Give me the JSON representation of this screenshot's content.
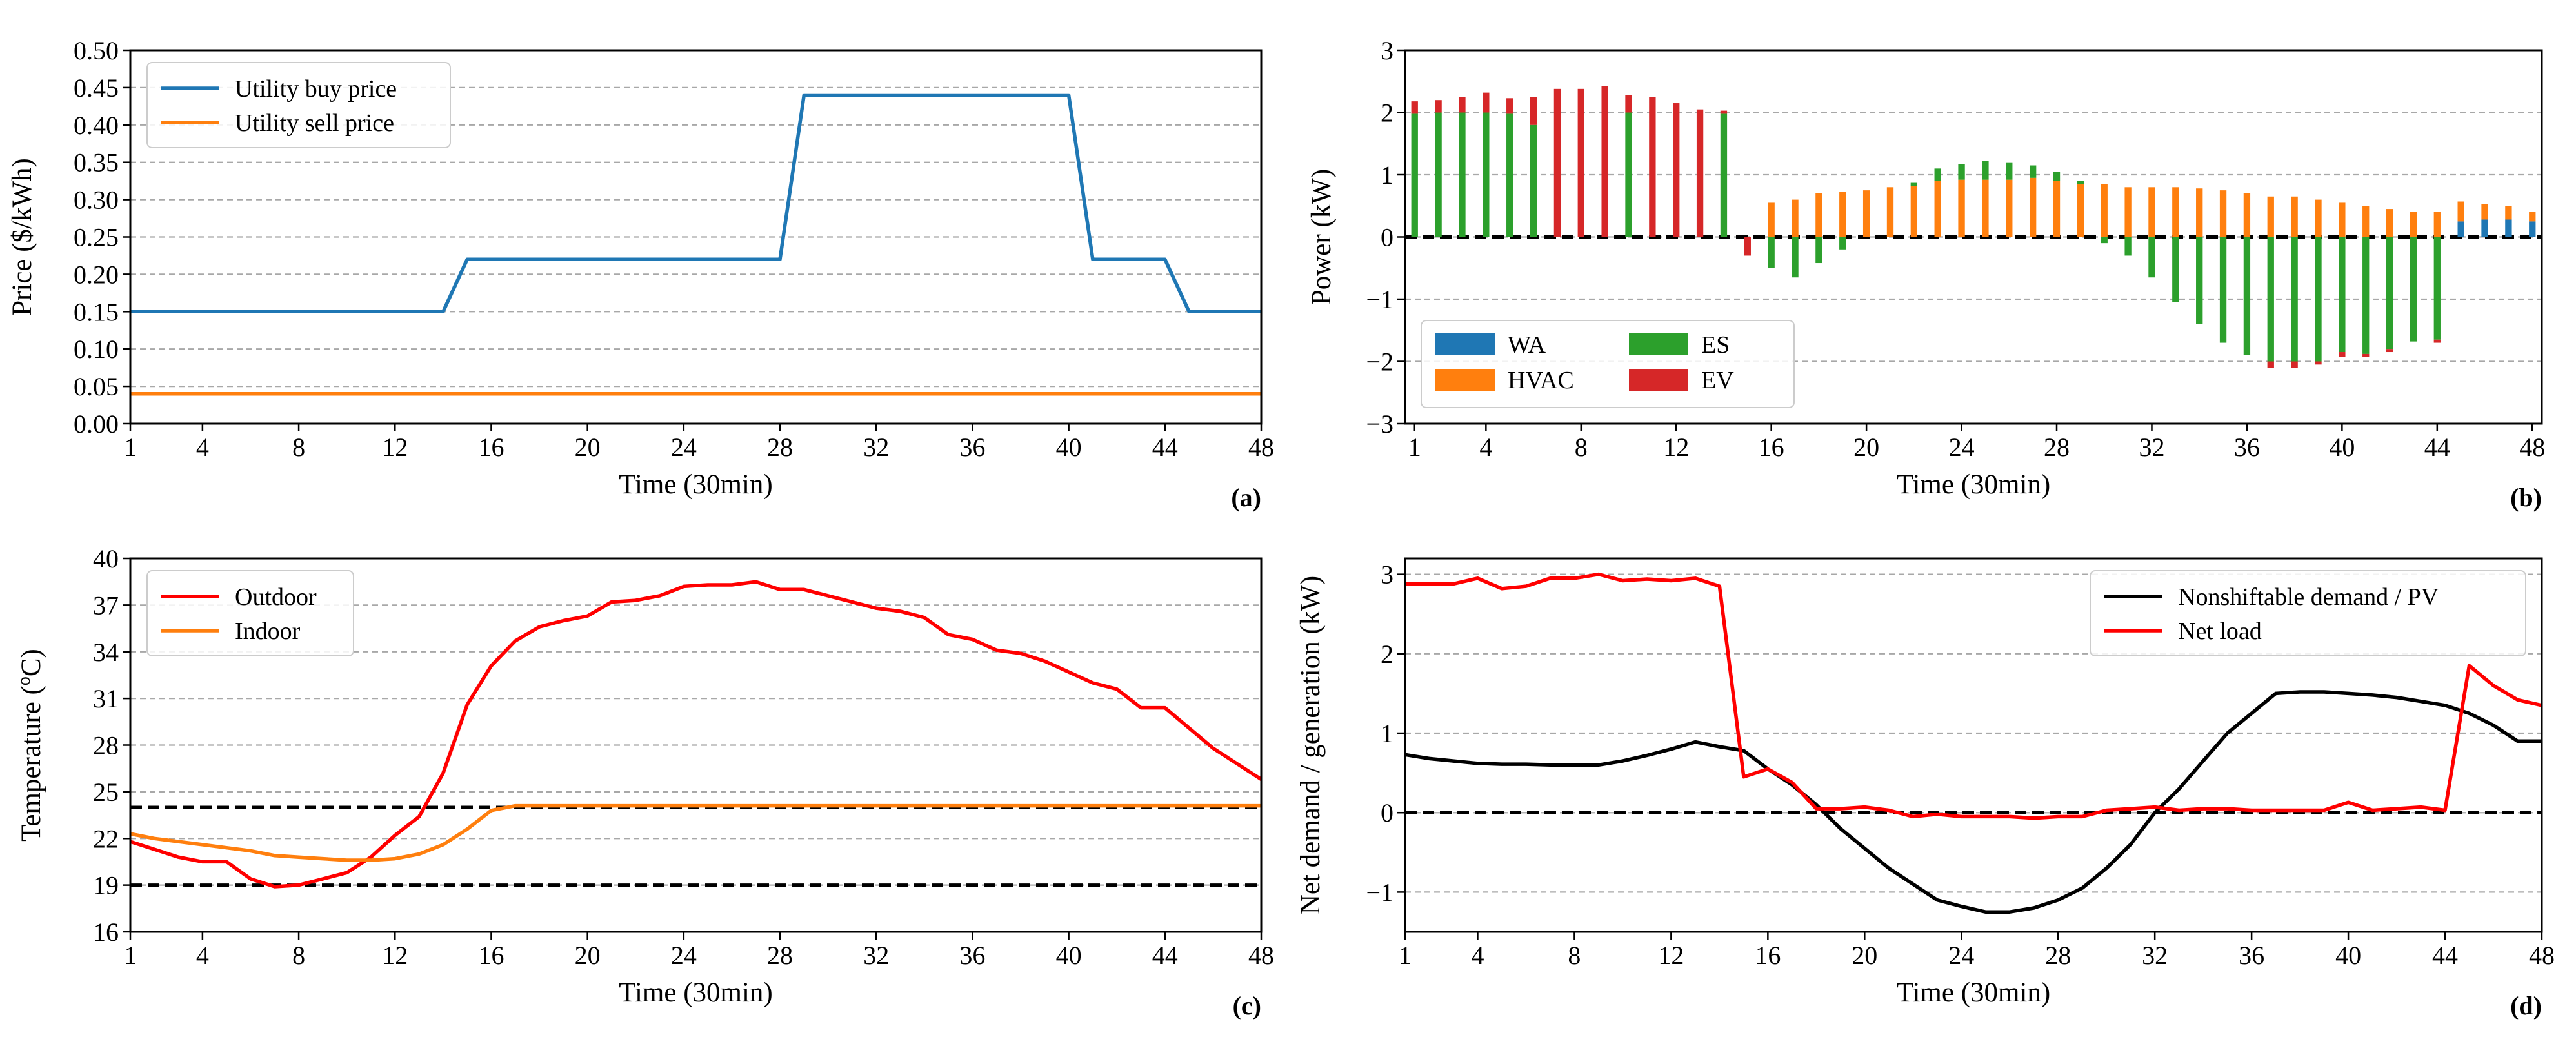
{
  "colors": {
    "blue": "#1f77b4",
    "orange": "#ff7f0e",
    "green": "#2ca02c",
    "red": "#d62728",
    "red_line": "#ff0000",
    "black": "#000000",
    "grid": "#a8a8a8"
  },
  "chart_data": [
    {
      "type": "line",
      "panel_label": "(a)",
      "xlabel": "Time (30min)",
      "ylabel": "Price ($/kWh)",
      "xlim": [
        1,
        48
      ],
      "ylim": [
        0,
        0.5
      ],
      "xticks": [
        1,
        4,
        8,
        12,
        16,
        20,
        24,
        28,
        32,
        36,
        40,
        44,
        48
      ],
      "yticks": [
        0,
        0.05,
        0.1,
        0.15,
        0.2,
        0.25,
        0.3,
        0.35,
        0.4,
        0.45,
        0.5
      ],
      "ytick_labels": [
        "0.00",
        "0.05",
        "0.10",
        "0.15",
        "0.20",
        "0.25",
        "0.30",
        "0.35",
        "0.40",
        "0.45",
        "0.50"
      ],
      "grid": "horizontal dashed",
      "legend_position": "top-left",
      "series": [
        {
          "name": "Utility buy price",
          "color": "#1f77b4",
          "x": [
            1,
            14,
            15,
            28,
            29,
            40,
            41,
            44,
            45,
            48
          ],
          "values": [
            0.15,
            0.15,
            0.22,
            0.22,
            0.44,
            0.44,
            0.22,
            0.22,
            0.15,
            0.15
          ]
        },
        {
          "name": "Utility sell price",
          "color": "#ff7f0e",
          "x": [
            1,
            48
          ],
          "values": [
            0.04,
            0.04
          ]
        }
      ]
    },
    {
      "type": "bar",
      "stacked": true,
      "panel_label": "(b)",
      "xlabel": "Time (30min)",
      "ylabel": "Power (kW)",
      "xlim": [
        0.6,
        48.4
      ],
      "ylim": [
        -3,
        3
      ],
      "xticks": [
        1,
        4,
        8,
        12,
        16,
        20,
        24,
        28,
        32,
        36,
        40,
        44,
        48
      ],
      "yticks": [
        -3,
        -2,
        -1,
        0,
        1,
        2,
        3
      ],
      "ytick_labels": [
        "−3",
        "−2",
        "−1",
        "0",
        "1",
        "2",
        "3"
      ],
      "grid": "horizontal dashed",
      "zero_line": "black dashed",
      "legend_position": "bottom-left",
      "legend_columns": 2,
      "categories": [
        1,
        2,
        3,
        4,
        5,
        6,
        7,
        8,
        9,
        10,
        11,
        12,
        13,
        14,
        15,
        16,
        17,
        18,
        19,
        20,
        21,
        22,
        23,
        24,
        25,
        26,
        27,
        28,
        29,
        30,
        31,
        32,
        33,
        34,
        35,
        36,
        37,
        38,
        39,
        40,
        41,
        42,
        43,
        44,
        45,
        46,
        47,
        48
      ],
      "series": [
        {
          "name": "WA",
          "color": "#1f77b4",
          "values": [
            0,
            0,
            0,
            0,
            0,
            0,
            0,
            0,
            0,
            0,
            0,
            0,
            0,
            0,
            0,
            0,
            0,
            0,
            0,
            0,
            0,
            0,
            0,
            0,
            0,
            0,
            0,
            0,
            0,
            0,
            0,
            0,
            0,
            0,
            0,
            0,
            0,
            0,
            0,
            0,
            0,
            0,
            0,
            0,
            0.25,
            0.28,
            0.28,
            0.25
          ]
        },
        {
          "name": "HVAC",
          "color": "#ff7f0e",
          "values": [
            0,
            0,
            0,
            0,
            0,
            0,
            0,
            0,
            0,
            0,
            0,
            0,
            0,
            0,
            0,
            0.55,
            0.6,
            0.7,
            0.73,
            0.75,
            0.8,
            0.82,
            0.9,
            0.92,
            0.92,
            0.92,
            0.95,
            0.9,
            0.85,
            0.85,
            0.8,
            0.8,
            0.8,
            0.78,
            0.75,
            0.7,
            0.65,
            0.65,
            0.6,
            0.55,
            0.5,
            0.45,
            0.4,
            0.4,
            0.32,
            0.25,
            0.22,
            0.15
          ]
        },
        {
          "name": "ES",
          "color": "#2ca02c",
          "values": [
            1.98,
            2.0,
            2.0,
            2.0,
            1.98,
            1.8,
            0,
            0,
            0,
            2.0,
            0,
            0,
            0,
            1.98,
            0,
            -0.5,
            -0.65,
            -0.42,
            -0.2,
            0,
            0,
            0.05,
            0.2,
            0.25,
            0.3,
            0.28,
            0.2,
            0.15,
            0.05,
            -0.1,
            -0.3,
            -0.65,
            -1.05,
            -1.4,
            -1.7,
            -1.9,
            -2.0,
            -2.0,
            -2.0,
            -1.85,
            -1.88,
            -1.8,
            -1.68,
            -1.65,
            0,
            0,
            0,
            0
          ]
        },
        {
          "name": "EV",
          "color": "#d62728",
          "values": [
            0.2,
            0.2,
            0.25,
            0.32,
            0.25,
            0.45,
            2.38,
            2.38,
            2.42,
            0.28,
            2.25,
            2.15,
            2.05,
            0.05,
            -0.3,
            0,
            0,
            0,
            0,
            0,
            0,
            0,
            0,
            0,
            0,
            0,
            0,
            0,
            0,
            0,
            0,
            0,
            0,
            0,
            0,
            0,
            -0.1,
            -0.1,
            -0.05,
            -0.08,
            -0.05,
            -0.05,
            0,
            -0.05,
            0,
            0,
            0,
            0
          ]
        }
      ]
    },
    {
      "type": "line",
      "panel_label": "(c)",
      "xlabel": "Time (30min)",
      "ylabel_parts": [
        "Temperature (",
        "o",
        "C)"
      ],
      "xlim": [
        1,
        48
      ],
      "ylim": [
        16,
        40
      ],
      "xticks": [
        1,
        4,
        8,
        12,
        16,
        20,
        24,
        28,
        32,
        36,
        40,
        44,
        48
      ],
      "yticks": [
        16,
        19,
        22,
        25,
        28,
        31,
        34,
        37,
        40
      ],
      "ytick_labels": [
        "16",
        "19",
        "22",
        "25",
        "28",
        "31",
        "34",
        "37",
        "40"
      ],
      "grid": "horizontal dashed",
      "reference_lines": [
        19,
        24
      ],
      "legend_position": "top-left",
      "series": [
        {
          "name": "Outdoor",
          "color": "#ff0000",
          "x": [
            1,
            2,
            3,
            4,
            5,
            6,
            7,
            8,
            9,
            10,
            11,
            12,
            13,
            14,
            15,
            16,
            17,
            18,
            19,
            20,
            21,
            22,
            23,
            24,
            25,
            26,
            27,
            28,
            29,
            30,
            31,
            32,
            33,
            34,
            35,
            36,
            37,
            38,
            39,
            40,
            41,
            42,
            43,
            44,
            45,
            46,
            47,
            48
          ],
          "values": [
            21.8,
            21.3,
            20.8,
            20.5,
            20.5,
            19.4,
            18.9,
            19.0,
            19.4,
            19.8,
            20.8,
            22.2,
            23.4,
            26.2,
            30.6,
            33.1,
            34.7,
            35.6,
            36.0,
            36.3,
            37.2,
            37.3,
            37.6,
            38.2,
            38.3,
            38.3,
            38.5,
            38.0,
            38.0,
            37.6,
            37.2,
            36.8,
            36.6,
            36.2,
            35.1,
            34.8,
            34.1,
            33.9,
            33.4,
            32.7,
            32.0,
            31.6,
            30.4,
            30.4,
            29.1,
            27.8,
            26.8,
            25.8
          ]
        },
        {
          "name": "Indoor",
          "color": "#ff7f0e",
          "x": [
            1,
            2,
            3,
            4,
            5,
            6,
            7,
            8,
            9,
            10,
            11,
            12,
            13,
            14,
            15,
            16,
            17,
            18,
            19,
            20,
            21,
            22,
            23,
            24,
            25,
            26,
            27,
            28,
            29,
            30,
            31,
            32,
            33,
            34,
            35,
            36,
            37,
            38,
            39,
            40,
            41,
            42,
            43,
            44,
            45,
            46,
            47,
            48
          ],
          "values": [
            22.3,
            22.0,
            21.8,
            21.6,
            21.4,
            21.2,
            20.9,
            20.8,
            20.7,
            20.6,
            20.6,
            20.7,
            21.0,
            21.6,
            22.6,
            23.8,
            24.1,
            24.1,
            24.1,
            24.1,
            24.1,
            24.1,
            24.1,
            24.1,
            24.1,
            24.1,
            24.1,
            24.1,
            24.1,
            24.1,
            24.1,
            24.1,
            24.1,
            24.1,
            24.1,
            24.1,
            24.1,
            24.1,
            24.1,
            24.1,
            24.1,
            24.1,
            24.1,
            24.1,
            24.1,
            24.1,
            24.1,
            24.1
          ]
        }
      ]
    },
    {
      "type": "line",
      "panel_label": "(d)",
      "xlabel": "Time (30min)",
      "ylabel": "Net demand / generation (kW)",
      "xlim": [
        1,
        48
      ],
      "ylim": [
        -1.5,
        3.2
      ],
      "xticks": [
        1,
        4,
        8,
        12,
        16,
        20,
        24,
        28,
        32,
        36,
        40,
        44,
        48
      ],
      "yticks": [
        -1,
        0,
        1,
        2,
        3
      ],
      "ytick_labels": [
        "−1",
        "0",
        "1",
        "2",
        "3"
      ],
      "grid": "horizontal dashed",
      "zero_line": "black dashed",
      "legend_position": "top-right",
      "series": [
        {
          "name": "Nonshiftable demand / PV",
          "color": "#000000",
          "x": [
            1,
            2,
            3,
            4,
            5,
            6,
            7,
            8,
            9,
            10,
            11,
            12,
            13,
            14,
            15,
            16,
            17,
            18,
            19,
            20,
            21,
            22,
            23,
            24,
            25,
            26,
            27,
            28,
            29,
            30,
            31,
            32,
            33,
            34,
            35,
            36,
            37,
            38,
            39,
            40,
            41,
            42,
            43,
            44,
            45,
            46,
            47,
            48
          ],
          "values": [
            0.73,
            0.68,
            0.65,
            0.62,
            0.61,
            0.61,
            0.6,
            0.6,
            0.6,
            0.65,
            0.72,
            0.8,
            0.89,
            0.83,
            0.78,
            0.55,
            0.35,
            0.1,
            -0.2,
            -0.45,
            -0.7,
            -0.9,
            -1.1,
            -1.18,
            -1.25,
            -1.25,
            -1.2,
            -1.1,
            -0.95,
            -0.7,
            -0.4,
            0.0,
            0.3,
            0.65,
            1.0,
            1.25,
            1.5,
            1.52,
            1.52,
            1.5,
            1.48,
            1.45,
            1.4,
            1.35,
            1.25,
            1.1,
            0.9,
            0.9
          ]
        },
        {
          "name": "Net load",
          "color": "#ff0000",
          "x": [
            1,
            2,
            3,
            4,
            5,
            6,
            7,
            8,
            9,
            10,
            11,
            12,
            13,
            14,
            15,
            16,
            17,
            18,
            19,
            20,
            21,
            22,
            23,
            24,
            25,
            26,
            27,
            28,
            29,
            30,
            31,
            32,
            33,
            34,
            35,
            36,
            37,
            38,
            39,
            40,
            41,
            42,
            43,
            44,
            45,
            46,
            47,
            48
          ],
          "values": [
            2.88,
            2.88,
            2.88,
            2.95,
            2.82,
            2.85,
            2.95,
            2.95,
            3.0,
            2.92,
            2.94,
            2.92,
            2.95,
            2.85,
            0.45,
            0.55,
            0.38,
            0.05,
            0.05,
            0.07,
            0.03,
            -0.05,
            -0.02,
            -0.05,
            -0.05,
            -0.05,
            -0.07,
            -0.05,
            -0.05,
            0.03,
            0.05,
            0.07,
            0.03,
            0.05,
            0.05,
            0.03,
            0.03,
            0.03,
            0.03,
            0.13,
            0.03,
            0.05,
            0.07,
            0.03,
            1.85,
            1.6,
            1.42,
            1.35
          ]
        }
      ]
    }
  ]
}
